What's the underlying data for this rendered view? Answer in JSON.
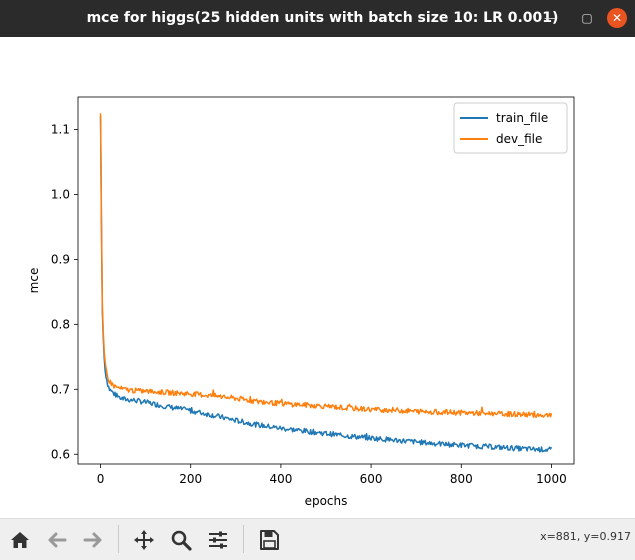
{
  "window": {
    "title": "mce for higgs(25 hidden units with batch size 10: LR 0.001)",
    "min_glyph": "—",
    "max_glyph": "▢",
    "close_glyph": "✕"
  },
  "toolbar": {
    "buttons": [
      {
        "name": "home-button",
        "icon": "home-icon"
      },
      {
        "name": "back-button",
        "icon": "arrow-left-icon"
      },
      {
        "name": "forward-button",
        "icon": "arrow-right-icon"
      },
      {
        "name": "pan-button",
        "icon": "move-icon"
      },
      {
        "name": "zoom-button",
        "icon": "magnifier-icon"
      },
      {
        "name": "configure-subplots-button",
        "icon": "sliders-icon"
      },
      {
        "name": "save-button",
        "icon": "floppy-disk-icon"
      }
    ],
    "coords": "x=881, y=0.917"
  },
  "chart_data": {
    "type": "line",
    "title": "",
    "xlabel": "epochs",
    "ylabel": "mce",
    "xlim": [
      -50,
      1050
    ],
    "ylim": [
      0.585,
      1.15
    ],
    "xticks": [
      "0",
      "200",
      "400",
      "600",
      "800",
      "1000"
    ],
    "xtick_values": [
      0,
      200,
      400,
      600,
      800,
      1000
    ],
    "yticks": [
      "0.6",
      "0.7",
      "0.8",
      "0.9",
      "1.0",
      "1.1"
    ],
    "ytick_values": [
      0.6,
      0.7,
      0.8,
      0.9,
      1.0,
      1.1
    ],
    "grid": false,
    "legend_position": "top-right",
    "series": [
      {
        "name": "train_file",
        "color": "#1f77b4",
        "x": [
          0,
          2,
          4,
          6,
          8,
          10,
          15,
          20,
          30,
          40,
          50,
          75,
          100,
          150,
          200,
          250,
          300,
          350,
          400,
          450,
          500,
          550,
          600,
          650,
          700,
          750,
          800,
          850,
          900,
          950,
          1000
        ],
        "y": [
          1.12,
          0.95,
          0.82,
          0.78,
          0.75,
          0.73,
          0.71,
          0.7,
          0.693,
          0.688,
          0.685,
          0.683,
          0.68,
          0.673,
          0.667,
          0.66,
          0.652,
          0.645,
          0.64,
          0.636,
          0.632,
          0.628,
          0.625,
          0.622,
          0.619,
          0.616,
          0.614,
          0.612,
          0.61,
          0.608,
          0.607
        ]
      },
      {
        "name": "dev_file",
        "color": "#ff7f0e",
        "x": [
          0,
          2,
          4,
          6,
          8,
          10,
          15,
          20,
          30,
          40,
          50,
          75,
          100,
          150,
          200,
          250,
          300,
          350,
          400,
          450,
          500,
          550,
          600,
          650,
          700,
          750,
          800,
          850,
          900,
          950,
          1000
        ],
        "y": [
          1.125,
          0.96,
          0.83,
          0.79,
          0.76,
          0.74,
          0.72,
          0.712,
          0.705,
          0.702,
          0.7,
          0.698,
          0.697,
          0.695,
          0.693,
          0.69,
          0.686,
          0.681,
          0.678,
          0.676,
          0.674,
          0.671,
          0.669,
          0.668,
          0.666,
          0.665,
          0.664,
          0.663,
          0.662,
          0.661,
          0.66
        ]
      }
    ]
  }
}
